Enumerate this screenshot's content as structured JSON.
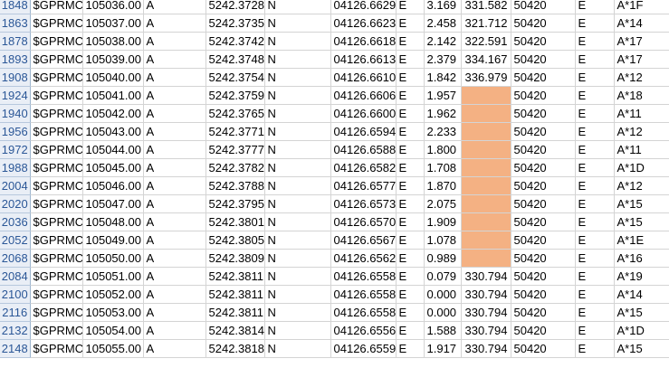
{
  "sheet": {
    "highlight_color": "#f4b183",
    "rows": [
      {
        "id": "1848",
        "cells": [
          "$GPRMC",
          "105036.00",
          "A",
          "5242.3728",
          "N",
          "04126.6629",
          "E",
          "3.169",
          "331.582",
          "50420",
          "E",
          "A*1F"
        ]
      },
      {
        "id": "1863",
        "cells": [
          "$GPRMC",
          "105037.00",
          "A",
          "5242.3735",
          "N",
          "04126.6623",
          "E",
          "2.458",
          "321.712",
          "50420",
          "E",
          "A*14"
        ]
      },
      {
        "id": "1878",
        "cells": [
          "$GPRMC",
          "105038.00",
          "A",
          "5242.3742",
          "N",
          "04126.6618",
          "E",
          "2.142",
          "322.591",
          "50420",
          "E",
          "A*17"
        ]
      },
      {
        "id": "1893",
        "cells": [
          "$GPRMC",
          "105039.00",
          "A",
          "5242.3748",
          "N",
          "04126.6613",
          "E",
          "2.379",
          "334.167",
          "50420",
          "E",
          "A*17"
        ]
      },
      {
        "id": "1908",
        "cells": [
          "$GPRMC",
          "105040.00",
          "A",
          "5242.3754",
          "N",
          "04126.6610",
          "E",
          "1.842",
          "336.979",
          "50420",
          "E",
          "A*12"
        ]
      },
      {
        "id": "1924",
        "cells": [
          "$GPRMC",
          "105041.00",
          "A",
          "5242.3759",
          "N",
          "04126.6606",
          "E",
          "1.957",
          "",
          "50420",
          "E",
          "A*18"
        ],
        "highlight": true
      },
      {
        "id": "1940",
        "cells": [
          "$GPRMC",
          "105042.00",
          "A",
          "5242.3765",
          "N",
          "04126.6600",
          "E",
          "1.962",
          "",
          "50420",
          "E",
          "A*11"
        ],
        "highlight": true
      },
      {
        "id": "1956",
        "cells": [
          "$GPRMC",
          "105043.00",
          "A",
          "5242.3771",
          "N",
          "04126.6594",
          "E",
          "2.233",
          "",
          "50420",
          "E",
          "A*12"
        ],
        "highlight": true
      },
      {
        "id": "1972",
        "cells": [
          "$GPRMC",
          "105044.00",
          "A",
          "5242.3777",
          "N",
          "04126.6588",
          "E",
          "1.800",
          "",
          "50420",
          "E",
          "A*11"
        ],
        "highlight": true
      },
      {
        "id": "1988",
        "cells": [
          "$GPRMC",
          "105045.00",
          "A",
          "5242.3782",
          "N",
          "04126.6582",
          "E",
          "1.708",
          "",
          "50420",
          "E",
          "A*1D"
        ],
        "highlight": true
      },
      {
        "id": "2004",
        "cells": [
          "$GPRMC",
          "105046.00",
          "A",
          "5242.3788",
          "N",
          "04126.6577",
          "E",
          "1.870",
          "",
          "50420",
          "E",
          "A*12"
        ],
        "highlight": true
      },
      {
        "id": "2020",
        "cells": [
          "$GPRMC",
          "105047.00",
          "A",
          "5242.3795",
          "N",
          "04126.6573",
          "E",
          "2.075",
          "",
          "50420",
          "E",
          "A*15"
        ],
        "highlight": true
      },
      {
        "id": "2036",
        "cells": [
          "$GPRMC",
          "105048.00",
          "A",
          "5242.3801",
          "N",
          "04126.6570",
          "E",
          "1.909",
          "",
          "50420",
          "E",
          "A*15"
        ],
        "highlight": true
      },
      {
        "id": "2052",
        "cells": [
          "$GPRMC",
          "105049.00",
          "A",
          "5242.3805",
          "N",
          "04126.6567",
          "E",
          "1.078",
          "",
          "50420",
          "E",
          "A*1E"
        ],
        "highlight": true
      },
      {
        "id": "2068",
        "cells": [
          "$GPRMC",
          "105050.00",
          "A",
          "5242.3809",
          "N",
          "04126.6562",
          "E",
          "0.989",
          "",
          "50420",
          "E",
          "A*16"
        ],
        "highlight": true
      },
      {
        "id": "2084",
        "cells": [
          "$GPRMC",
          "105051.00",
          "A",
          "5242.3811",
          "N",
          "04126.6558",
          "E",
          "0.079",
          "330.794",
          "50420",
          "E",
          "A*19"
        ]
      },
      {
        "id": "2100",
        "cells": [
          "$GPRMC",
          "105052.00",
          "A",
          "5242.3811",
          "N",
          "04126.6558",
          "E",
          "0.000",
          "330.794",
          "50420",
          "E",
          "A*14"
        ]
      },
      {
        "id": "2116",
        "cells": [
          "$GPRMC",
          "105053.00",
          "A",
          "5242.3811",
          "N",
          "04126.6558",
          "E",
          "0.000",
          "330.794",
          "50420",
          "E",
          "A*15"
        ]
      },
      {
        "id": "2132",
        "cells": [
          "$GPRMC",
          "105054.00",
          "A",
          "5242.3814",
          "N",
          "04126.6556",
          "E",
          "1.588",
          "330.794",
          "50420",
          "E",
          "A*1D"
        ]
      },
      {
        "id": "2148",
        "cells": [
          "$GPRMC",
          "105055.00",
          "A",
          "5242.3818",
          "N",
          "04126.6559",
          "E",
          "1.917",
          "330.794",
          "50420",
          "E",
          "A*15"
        ]
      }
    ]
  }
}
